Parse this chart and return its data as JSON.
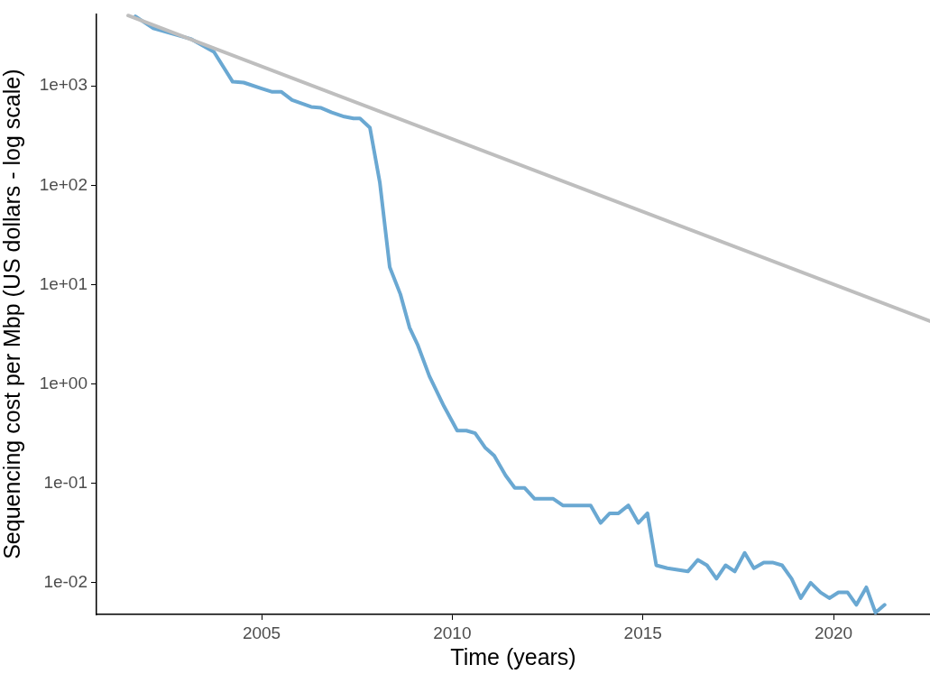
{
  "chart_data": {
    "type": "line",
    "xlabel": "Time (years)",
    "ylabel": "Sequencing cost per Mbp (US dollars - log scale)",
    "log": "y",
    "grid": false,
    "legend": false,
    "marker": "none",
    "line_style": "solid",
    "xlim": [
      2000.67,
      2022.53
    ],
    "xticks": [
      2005,
      2010,
      2015,
      2020
    ],
    "ylim": [
      0.0048,
      5300
    ],
    "yticks": [
      {
        "value": 0.01,
        "label": "1e-02"
      },
      {
        "value": 0.1,
        "label": "1e-01"
      },
      {
        "value": 1,
        "label": "1e+00"
      },
      {
        "value": 10,
        "label": "1e+01"
      },
      {
        "value": 100,
        "label": "1e+02"
      },
      {
        "value": 1000,
        "label": "1e+03"
      }
    ],
    "series": [
      {
        "color": "#bebebe",
        "x": [
          2001.5,
          2022.53
        ],
        "values": [
          5100,
          4.3
        ]
      },
      {
        "color": "#6aa8d2",
        "x": [
          2001.69,
          2002.16,
          2003.16,
          2003.75,
          2004.24,
          2004.53,
          2005.0,
          2005.28,
          2005.52,
          2005.8,
          2006.3,
          2006.56,
          2006.84,
          2007.17,
          2007.41,
          2007.58,
          2007.84,
          2008.1,
          2008.36,
          2008.64,
          2008.88,
          2009.09,
          2009.4,
          2009.78,
          2010.13,
          2010.37,
          2010.6,
          2010.86,
          2011.1,
          2011.4,
          2011.64,
          2011.9,
          2012.16,
          2012.65,
          2012.9,
          2013.63,
          2013.89,
          2014.13,
          2014.36,
          2014.62,
          2014.88,
          2015.12,
          2015.35,
          2015.64,
          2016.18,
          2016.44,
          2016.68,
          2016.93,
          2017.17,
          2017.41,
          2017.67,
          2017.91,
          2018.17,
          2018.4,
          2018.65,
          2018.9,
          2019.14,
          2019.4,
          2019.66,
          2019.89,
          2020.13,
          2020.37,
          2020.6,
          2020.86,
          2021.1,
          2021.34
        ],
        "values": [
          5000,
          3800,
          2950,
          2200,
          1100,
          1080,
          940,
          870,
          870,
          720,
          615,
          600,
          540,
          490,
          470,
          470,
          380,
          107,
          15,
          8,
          3.7,
          2.5,
          1.2,
          0.6,
          0.34,
          0.34,
          0.32,
          0.23,
          0.19,
          0.12,
          0.09,
          0.09,
          0.07,
          0.07,
          0.06,
          0.06,
          0.04,
          0.05,
          0.05,
          0.06,
          0.04,
          0.05,
          0.015,
          0.014,
          0.013,
          0.017,
          0.015,
          0.011,
          0.015,
          0.013,
          0.02,
          0.014,
          0.016,
          0.016,
          0.015,
          0.011,
          0.007,
          0.01,
          0.008,
          0.007,
          0.008,
          0.008,
          0.006,
          0.009,
          0.005,
          0.006
        ]
      }
    ]
  }
}
